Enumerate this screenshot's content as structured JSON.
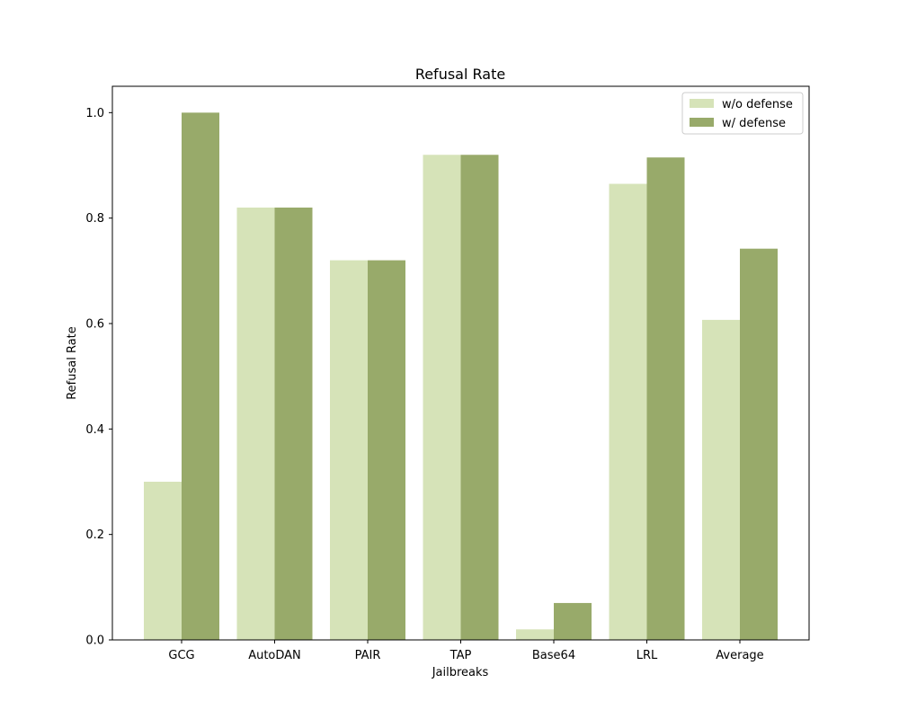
{
  "chart_data": {
    "type": "bar",
    "title": "Refusal Rate",
    "xlabel": "Jailbreaks",
    "ylabel": "Refusal Rate",
    "categories": [
      "GCG",
      "AutoDAN",
      "PAIR",
      "TAP",
      "Base64",
      "LRL",
      "Average"
    ],
    "series": [
      {
        "name": "w/o defense",
        "color": "#d6e3b8",
        "values": [
          0.3,
          0.82,
          0.72,
          0.92,
          0.02,
          0.865,
          0.607
        ]
      },
      {
        "name": "w/ defense",
        "color": "#98aa6a",
        "values": [
          1.0,
          0.82,
          0.72,
          0.92,
          0.07,
          0.915,
          0.742
        ]
      }
    ],
    "ylim": [
      0,
      1.05
    ],
    "yticks": [
      "0.0",
      "0.2",
      "0.4",
      "0.6",
      "0.8",
      "1.0"
    ],
    "grid": false,
    "legend_position": "top-right"
  }
}
